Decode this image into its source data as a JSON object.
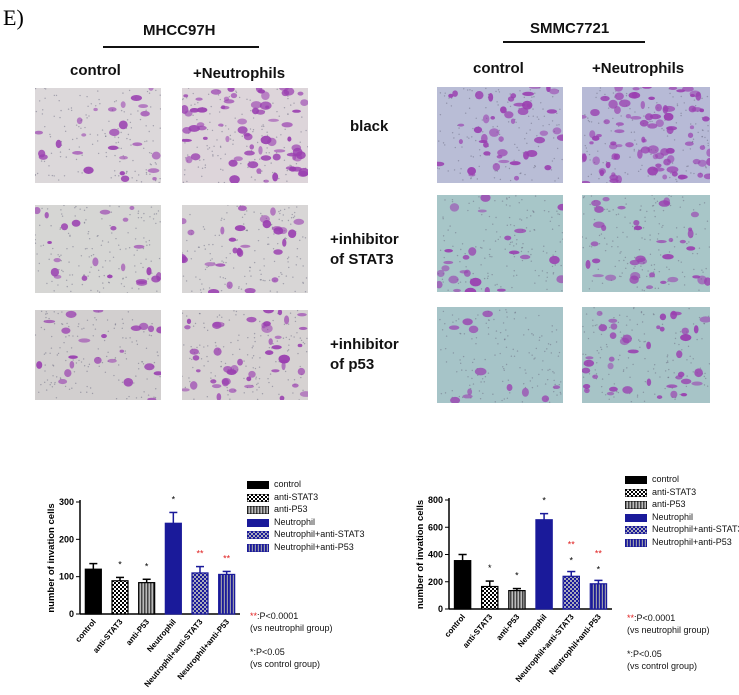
{
  "panel_label": "E)",
  "left": {
    "cell_line": "MHCC97H",
    "columns": [
      "control",
      "+Neutrophils"
    ]
  },
  "right": {
    "cell_line": "SMMC7721",
    "columns": [
      "control",
      "+Neutrophils"
    ]
  },
  "rows": [
    "black",
    "+inhibitor\nof STAT3",
    "+inhibitor\nof p53"
  ],
  "legend": [
    "control",
    "anti-STAT3",
    "anti-P53",
    "Neutrophil",
    "Neutrophil+anti-STAT3",
    "Neutrophil+anti-P53"
  ],
  "footnotes": {
    "double_star": "**",
    "double_text": ":P<0.0001",
    "double_sub": "(vs neutrophil group)",
    "single_star": "*",
    "single_text": ":P<0.05",
    "single_sub": "(vs control group)"
  },
  "colors": {
    "black": "#000000",
    "navy": "#1a1a9a",
    "grey": "#888888",
    "red_star": "#e02020"
  },
  "chart_data": [
    {
      "type": "bar",
      "ylabel": "number of invation cells",
      "ylim": [
        0,
        300
      ],
      "yticks": [
        0,
        100,
        200,
        300
      ],
      "categories": [
        "control",
        "anti-STAT3",
        "anti-P53",
        "Neutrophil",
        "Neutrophil+anti-STAT3",
        "Neutrophil+anti-P53"
      ],
      "values": [
        120,
        89,
        84,
        243,
        110,
        106
      ],
      "errors": [
        15,
        9,
        9,
        29,
        17,
        8
      ],
      "significance": [
        "",
        "*",
        "*",
        "*",
        "**",
        "**"
      ]
    },
    {
      "type": "bar",
      "ylabel": "number of invation cells",
      "ylim": [
        0,
        800
      ],
      "yticks": [
        0,
        200,
        400,
        600,
        800
      ],
      "categories": [
        "control",
        "anti-STAT3",
        "anti-P53",
        "Neutrophil",
        "Neutrophil+anti-STAT3",
        "Neutrophil+anti-P53"
      ],
      "values": [
        355,
        165,
        135,
        655,
        240,
        185
      ],
      "errors": [
        45,
        40,
        15,
        45,
        35,
        25
      ],
      "significance": [
        "",
        "*",
        "*",
        "*",
        "** *",
        "** *"
      ]
    }
  ]
}
